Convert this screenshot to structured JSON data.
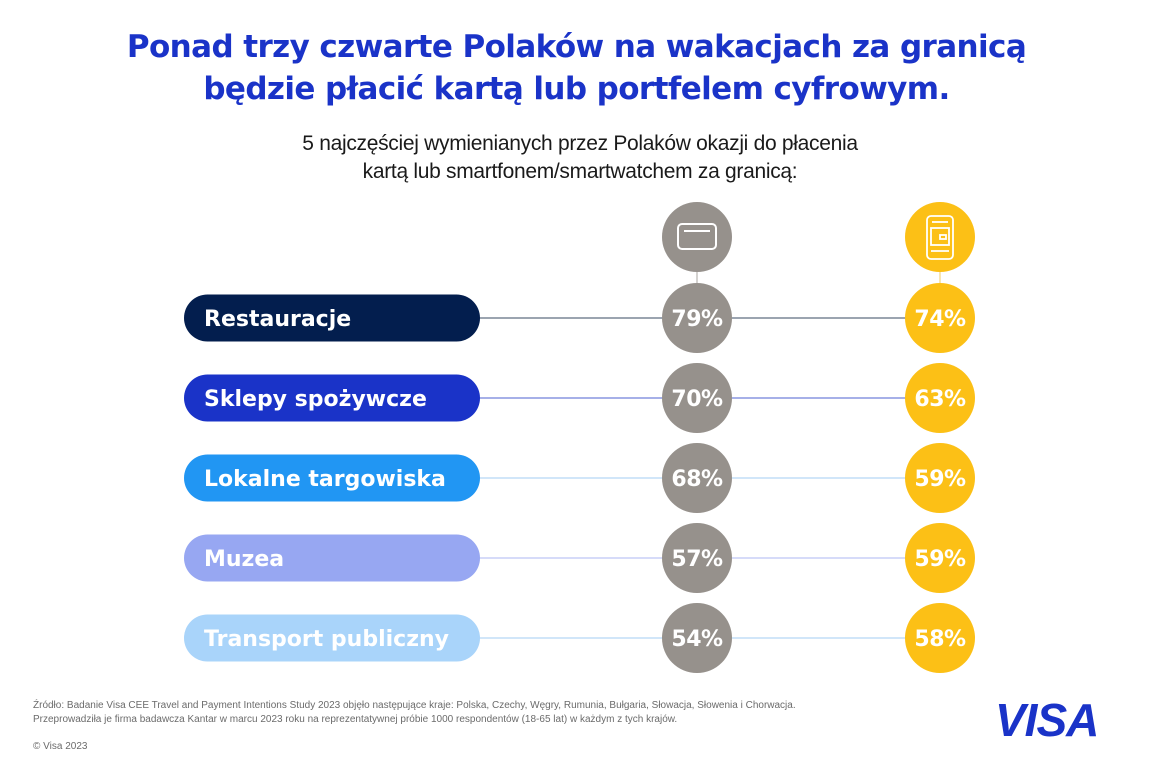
{
  "header": {
    "title_line1": "Ponad trzy czwarte Polaków na wakacjach za granicą",
    "title_line2": "będzie płacić kartą lub portfelem cyfrowym.",
    "subtitle_line1": "5 najczęściej wymienianych przez Polaków okazji do płacenia",
    "subtitle_line2": "kartą lub smartfonem/smartwatchem za granicą:"
  },
  "colors": {
    "title": "#1a33c8",
    "card_circle": "#96918c",
    "phone_circle": "#fcc016"
  },
  "chart_data": {
    "type": "table",
    "title": "5 najczęściej wymienianych przez Polaków okazji do płacenia kartą lub smartfonem/smartwatchem za granicą:",
    "series": [
      {
        "name": "Karta",
        "icon": "credit-card-icon",
        "values": [
          79,
          70,
          68,
          57,
          54
        ]
      },
      {
        "name": "Smartfon/smartwatch",
        "icon": "phone-wallet-icon",
        "values": [
          74,
          63,
          59,
          59,
          58
        ]
      }
    ],
    "categories": [
      "Restauracje",
      "Sklepy spożywcze",
      "Lokalne targowiska",
      "Muzea",
      "Transport publiczny"
    ],
    "category_colors": [
      "#031e4e",
      "#1a33c8",
      "#2196f3",
      "#97a7f2",
      "#a9d4fa"
    ],
    "category_text_colors": [
      "#ffffff",
      "#ffffff",
      "#ffffff",
      "#ffffff",
      "#ffffff"
    ],
    "line_colors": [
      "#7a8595",
      "#8896e0",
      "#c2def7",
      "#c9cff7",
      "#c2def7"
    ],
    "unit": "%"
  },
  "footer": {
    "source_line1": "Źródło: Badanie Visa CEE Travel and Payment Intentions Study 2023 objęło następujące kraje: Polska, Czechy, Węgry, Rumunia, Bułgaria, Słowacja, Słowenia i Chorwacja.",
    "source_line2": "Przeprowadziła je firma badawcza Kantar w marcu 2023 roku na reprezentatywnej próbie 1000 respondentów (18-65 lat) w każdym z tych krajów.",
    "copyright": "© Visa 2023"
  },
  "logo": {
    "text": "VISA",
    "color": "#1a33c8"
  }
}
